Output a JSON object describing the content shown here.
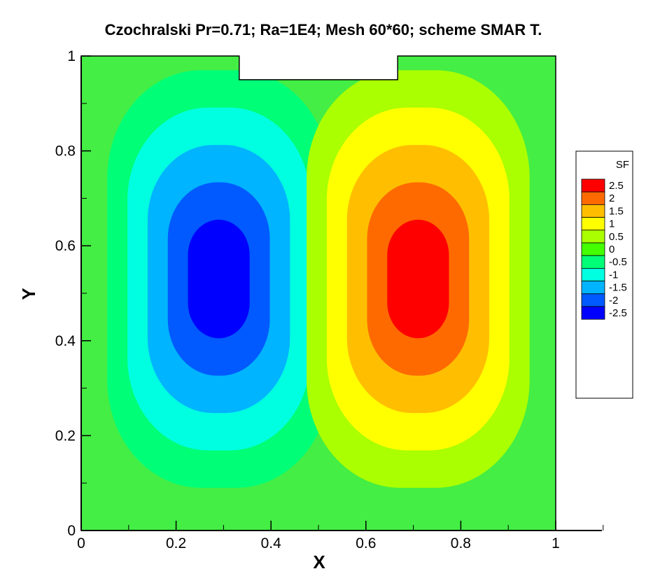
{
  "chart_data": {
    "type": "contour",
    "title": "Czochralski Pr=0.71; Ra=1E4; Mesh 60*60; scheme SMAR T.",
    "xlabel": "X",
    "ylabel": "Y",
    "xlim": [
      0,
      1.1
    ],
    "ylim": [
      0,
      1
    ],
    "x_ticks": [
      0,
      0.2,
      0.4,
      0.6,
      0.8,
      1
    ],
    "y_ticks": [
      0,
      0.2,
      0.4,
      0.6,
      0.8,
      1
    ],
    "x_tick_labels": [
      "0",
      "0.2",
      "0.4",
      "0.6",
      "0.8",
      "1"
    ],
    "y_tick_labels": [
      "0",
      "0.2",
      "0.4",
      "0.6",
      "0.8",
      "1"
    ],
    "domain": {
      "x": [
        0,
        1
      ],
      "y": [
        0,
        1
      ],
      "cutout": {
        "x": [
          0.333,
          0.667
        ],
        "y": [
          0.95,
          1
        ]
      }
    },
    "variable": "SF",
    "legend_position": "right",
    "levels": [
      -2.5,
      -2,
      -1.5,
      -1,
      -0.5,
      0,
      0.5,
      1,
      1.5,
      2,
      2.5
    ],
    "level_labels": [
      "2.5",
      "2",
      "1.5",
      "1",
      "0.5",
      "0",
      "-0.5",
      "-1",
      "-1.5",
      "-2",
      "-2.5"
    ],
    "level_colors": {
      "2.5": "#ff0000",
      "2": "#ff6a00",
      "1.5": "#ffbf00",
      "1": "#ffff00",
      "0.5": "#aaff00",
      "0": "#44ff00",
      "-0.5": "#00ff77",
      "-1": "#00ffe0",
      "-1.5": "#00b4ff",
      "-2": "#005aff",
      "-2.5": "#0000ff"
    },
    "background_color": "#44ee44",
    "vortices": [
      {
        "sign": "negative",
        "center_x": 0.29,
        "center_y": 0.53,
        "min_value": -2.5
      },
      {
        "sign": "positive",
        "center_x": 0.71,
        "center_y": 0.53,
        "max_value": 2.5
      }
    ]
  }
}
